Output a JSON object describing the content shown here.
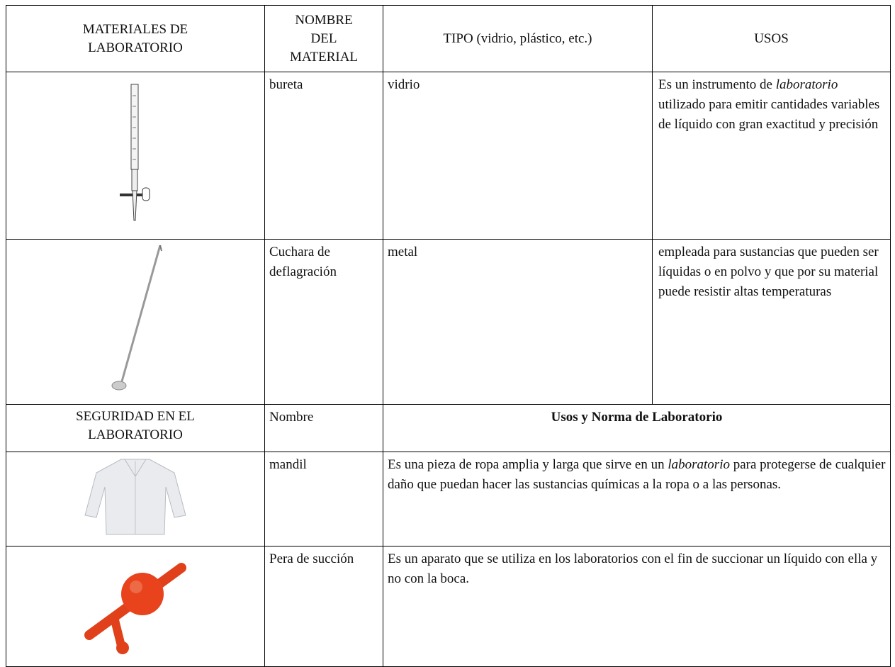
{
  "header": [
    "MATERIALES DE LABORATORIO",
    "NOMBRE DEL MATERIAL",
    "TIPO (vidrio, plástico, etc.)",
    "USOS"
  ],
  "materials": [
    {
      "name": "bureta",
      "type": "vidrio",
      "uses": [
        "Es un instrumento de",
        "laboratorio",
        "utilizado para emitir cantidades variables de líquido con gran exactitud y precisión"
      ]
    },
    {
      "name": "Cuchara de deflagración",
      "type": "metal",
      "uses": [
        "empleada para sustancias que pueden ser líquidas o en polvo y que por su material puede resistir altas temperaturas"
      ]
    }
  ],
  "safety_header": {
    "title": "SEGURIDAD EN EL LABORATORIO",
    "name": "Nombre",
    "uses": "Usos y Norma de Laboratorio"
  },
  "safety": [
    {
      "name": "mandil",
      "uses": [
        "Es una pieza de ropa amplia y larga que sirve en un",
        "laboratorio",
        "para protegerse de cualquier daño que puedan hacer las sustancias químicas a la ropa o a las personas."
      ]
    },
    {
      "name": "Pera de succión",
      "uses": [
        "Es un aparato que se utiliza en los laboratorios con el fin de succionar un líquido con ella y  no con la boca."
      ]
    }
  ]
}
